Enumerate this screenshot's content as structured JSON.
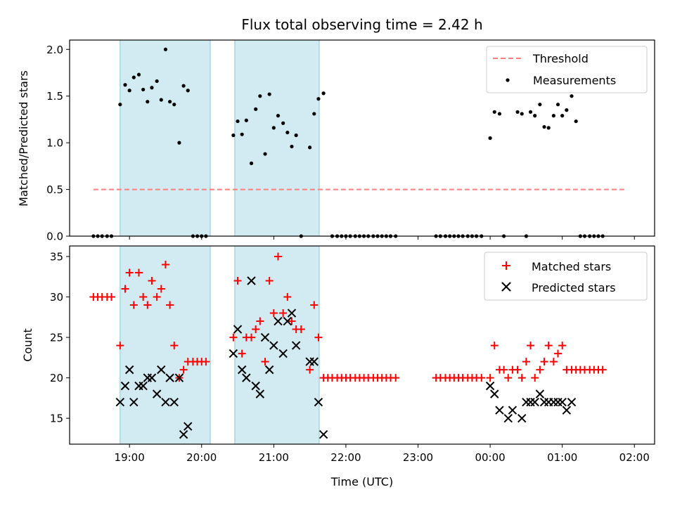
{
  "title": "Flux total observing time = 2.42 h",
  "chart_data": [
    {
      "type": "scatter",
      "ylabel": "Matched/Predicted stars",
      "xlim": [
        18.17,
        26.28
      ],
      "ylim": [
        0,
        2.1
      ],
      "yticks": [
        0.0,
        0.5,
        1.0,
        1.5,
        2.0
      ],
      "ytick_labels": [
        "0.0",
        "0.5",
        "1.0",
        "1.5",
        "2.0"
      ],
      "shaded_spans": [
        [
          18.87,
          20.12
        ],
        [
          20.46,
          21.63
        ]
      ],
      "shade_color": "#add8e6",
      "legend_position": "upper-right",
      "threshold": {
        "name": "Threshold",
        "y": 0.5,
        "x_range": [
          18.5,
          25.9
        ],
        "color": "#ff7f7f"
      },
      "series": [
        {
          "name": "Measurements",
          "color": "#000000",
          "marker": "dot",
          "points": [
            [
              18.5,
              0
            ],
            [
              18.56,
              0
            ],
            [
              18.62,
              0
            ],
            [
              18.69,
              0
            ],
            [
              18.75,
              0
            ],
            [
              18.87,
              1.41
            ],
            [
              18.94,
              1.62
            ],
            [
              19.0,
              1.56
            ],
            [
              19.06,
              1.7
            ],
            [
              19.13,
              1.73
            ],
            [
              19.19,
              1.57
            ],
            [
              19.25,
              1.44
            ],
            [
              19.31,
              1.59
            ],
            [
              19.38,
              1.66
            ],
            [
              19.44,
              1.46
            ],
            [
              19.5,
              2.0
            ],
            [
              19.56,
              1.44
            ],
            [
              19.62,
              1.41
            ],
            [
              19.69,
              1.0
            ],
            [
              19.75,
              1.61
            ],
            [
              19.81,
              1.56
            ],
            [
              19.88,
              0
            ],
            [
              19.94,
              0
            ],
            [
              20.0,
              0
            ],
            [
              20.06,
              0
            ],
            [
              20.44,
              1.08
            ],
            [
              20.5,
              1.23
            ],
            [
              20.56,
              1.09
            ],
            [
              20.62,
              1.24
            ],
            [
              20.69,
              0.78
            ],
            [
              20.75,
              1.36
            ],
            [
              20.81,
              1.5
            ],
            [
              20.88,
              0.88
            ],
            [
              20.94,
              1.52
            ],
            [
              21.0,
              1.16
            ],
            [
              21.06,
              1.29
            ],
            [
              21.13,
              1.21
            ],
            [
              21.19,
              1.11
            ],
            [
              21.25,
              0.96
            ],
            [
              21.31,
              1.08
            ],
            [
              21.38,
              0
            ],
            [
              21.5,
              0.95
            ],
            [
              21.56,
              1.31
            ],
            [
              21.62,
              1.47
            ],
            [
              21.69,
              1.53
            ],
            [
              21.81,
              0
            ],
            [
              21.88,
              0
            ],
            [
              21.94,
              0
            ],
            [
              22.0,
              0
            ],
            [
              22.06,
              0
            ],
            [
              22.13,
              0
            ],
            [
              22.19,
              0
            ],
            [
              22.25,
              0
            ],
            [
              22.31,
              0
            ],
            [
              22.38,
              0
            ],
            [
              22.44,
              0
            ],
            [
              22.5,
              0
            ],
            [
              22.56,
              0
            ],
            [
              22.62,
              0
            ],
            [
              22.69,
              0
            ],
            [
              23.25,
              0
            ],
            [
              23.31,
              0
            ],
            [
              23.38,
              0
            ],
            [
              23.44,
              0
            ],
            [
              23.5,
              0
            ],
            [
              23.56,
              0
            ],
            [
              23.62,
              0
            ],
            [
              23.69,
              0
            ],
            [
              23.75,
              0
            ],
            [
              23.81,
              0
            ],
            [
              23.88,
              0
            ],
            [
              24.0,
              1.05
            ],
            [
              24.06,
              1.33
            ],
            [
              24.13,
              1.31
            ],
            [
              24.19,
              0
            ],
            [
              24.38,
              1.33
            ],
            [
              24.44,
              1.31
            ],
            [
              24.5,
              0
            ],
            [
              24.56,
              1.33
            ],
            [
              24.62,
              1.29
            ],
            [
              24.69,
              1.41
            ],
            [
              24.75,
              1.17
            ],
            [
              24.81,
              1.16
            ],
            [
              24.88,
              1.29
            ],
            [
              24.94,
              1.41
            ],
            [
              25.0,
              1.29
            ],
            [
              25.06,
              1.35
            ],
            [
              25.13,
              1.5
            ],
            [
              25.19,
              1.23
            ],
            [
              25.25,
              0
            ],
            [
              25.31,
              0
            ],
            [
              25.38,
              0
            ],
            [
              25.44,
              0
            ],
            [
              25.5,
              0
            ],
            [
              25.56,
              0
            ]
          ]
        }
      ]
    },
    {
      "type": "scatter",
      "xlabel": "Time (UTC)",
      "ylabel": "Count",
      "xlim": [
        18.17,
        26.28
      ],
      "ylim": [
        11.8,
        36.3
      ],
      "yticks": [
        15,
        20,
        25,
        30,
        35
      ],
      "ytick_labels": [
        "15",
        "20",
        "25",
        "30",
        "35"
      ],
      "xticks": [
        19,
        20,
        21,
        22,
        23,
        24,
        25,
        26
      ],
      "xtick_labels": [
        "19:00",
        "20:00",
        "21:00",
        "22:00",
        "23:00",
        "00:00",
        "01:00",
        "02:00"
      ],
      "shaded_spans": [
        [
          18.87,
          20.12
        ],
        [
          20.46,
          21.63
        ]
      ],
      "shade_color": "#add8e6",
      "legend_position": "upper-right",
      "series": [
        {
          "name": "Matched stars",
          "color": "#ff0000",
          "marker": "plus",
          "points": [
            [
              18.5,
              30
            ],
            [
              18.56,
              30
            ],
            [
              18.62,
              30
            ],
            [
              18.69,
              30
            ],
            [
              18.75,
              30
            ],
            [
              18.87,
              24
            ],
            [
              18.94,
              31
            ],
            [
              19.0,
              33
            ],
            [
              19.06,
              29
            ],
            [
              19.13,
              33
            ],
            [
              19.19,
              30
            ],
            [
              19.25,
              29
            ],
            [
              19.31,
              32
            ],
            [
              19.38,
              30
            ],
            [
              19.44,
              31
            ],
            [
              19.5,
              34
            ],
            [
              19.56,
              29
            ],
            [
              19.62,
              24
            ],
            [
              19.69,
              20
            ],
            [
              19.75,
              21
            ],
            [
              19.81,
              22
            ],
            [
              19.88,
              22
            ],
            [
              19.94,
              22
            ],
            [
              20.0,
              22
            ],
            [
              20.06,
              22
            ],
            [
              20.44,
              25
            ],
            [
              20.5,
              32
            ],
            [
              20.56,
              23
            ],
            [
              20.62,
              25
            ],
            [
              20.69,
              25
            ],
            [
              20.75,
              26
            ],
            [
              20.81,
              27
            ],
            [
              20.88,
              22
            ],
            [
              20.94,
              32
            ],
            [
              21.0,
              28
            ],
            [
              21.06,
              35
            ],
            [
              21.13,
              28
            ],
            [
              21.19,
              30
            ],
            [
              21.25,
              27
            ],
            [
              21.31,
              26
            ],
            [
              21.38,
              26
            ],
            [
              21.5,
              21
            ],
            [
              21.56,
              29
            ],
            [
              21.62,
              25
            ],
            [
              21.69,
              20
            ],
            [
              21.75,
              20
            ],
            [
              21.81,
              20
            ],
            [
              21.88,
              20
            ],
            [
              21.94,
              20
            ],
            [
              22.0,
              20
            ],
            [
              22.06,
              20
            ],
            [
              22.13,
              20
            ],
            [
              22.19,
              20
            ],
            [
              22.25,
              20
            ],
            [
              22.31,
              20
            ],
            [
              22.38,
              20
            ],
            [
              22.44,
              20
            ],
            [
              22.5,
              20
            ],
            [
              22.56,
              20
            ],
            [
              22.62,
              20
            ],
            [
              22.69,
              20
            ],
            [
              23.25,
              20
            ],
            [
              23.31,
              20
            ],
            [
              23.38,
              20
            ],
            [
              23.44,
              20
            ],
            [
              23.5,
              20
            ],
            [
              23.56,
              20
            ],
            [
              23.62,
              20
            ],
            [
              23.69,
              20
            ],
            [
              23.75,
              20
            ],
            [
              23.81,
              20
            ],
            [
              23.88,
              20
            ],
            [
              24.0,
              20
            ],
            [
              24.06,
              24
            ],
            [
              24.13,
              21
            ],
            [
              24.19,
              21
            ],
            [
              24.25,
              20
            ],
            [
              24.31,
              21
            ],
            [
              24.38,
              21
            ],
            [
              24.44,
              20
            ],
            [
              24.5,
              22
            ],
            [
              24.56,
              24
            ],
            [
              24.62,
              20
            ],
            [
              24.69,
              21
            ],
            [
              24.75,
              22
            ],
            [
              24.81,
              24
            ],
            [
              24.88,
              22
            ],
            [
              24.94,
              23
            ],
            [
              25.0,
              24
            ],
            [
              25.06,
              21
            ],
            [
              25.13,
              21
            ],
            [
              25.19,
              21
            ],
            [
              25.25,
              21
            ],
            [
              25.31,
              21
            ],
            [
              25.38,
              21
            ],
            [
              25.44,
              21
            ],
            [
              25.5,
              21
            ],
            [
              25.56,
              21
            ]
          ]
        },
        {
          "name": "Predicted stars",
          "color": "#000000",
          "marker": "x",
          "points": [
            [
              18.87,
              17
            ],
            [
              18.94,
              19
            ],
            [
              19.0,
              21
            ],
            [
              19.06,
              17
            ],
            [
              19.13,
              19
            ],
            [
              19.19,
              19
            ],
            [
              19.25,
              20
            ],
            [
              19.31,
              20
            ],
            [
              19.38,
              18
            ],
            [
              19.44,
              21
            ],
            [
              19.5,
              17
            ],
            [
              19.56,
              20
            ],
            [
              19.62,
              17
            ],
            [
              19.69,
              20
            ],
            [
              19.75,
              13
            ],
            [
              19.81,
              14
            ],
            [
              20.44,
              23
            ],
            [
              20.5,
              26
            ],
            [
              20.56,
              21
            ],
            [
              20.62,
              20
            ],
            [
              20.69,
              32
            ],
            [
              20.75,
              19
            ],
            [
              20.81,
              18
            ],
            [
              20.88,
              25
            ],
            [
              20.94,
              21
            ],
            [
              21.0,
              24
            ],
            [
              21.06,
              27
            ],
            [
              21.13,
              23
            ],
            [
              21.19,
              27
            ],
            [
              21.25,
              28
            ],
            [
              21.31,
              24
            ],
            [
              21.5,
              22
            ],
            [
              21.56,
              22
            ],
            [
              21.62,
              17
            ],
            [
              21.69,
              13
            ],
            [
              24.0,
              19
            ],
            [
              24.06,
              18
            ],
            [
              24.13,
              16
            ],
            [
              24.25,
              15
            ],
            [
              24.31,
              16
            ],
            [
              24.44,
              15
            ],
            [
              24.5,
              17
            ],
            [
              24.56,
              17
            ],
            [
              24.62,
              17
            ],
            [
              24.69,
              18
            ],
            [
              24.75,
              17
            ],
            [
              24.81,
              17
            ],
            [
              24.88,
              17
            ],
            [
              24.94,
              17
            ],
            [
              25.0,
              17
            ],
            [
              25.06,
              16
            ],
            [
              25.13,
              17
            ]
          ]
        }
      ]
    }
  ]
}
